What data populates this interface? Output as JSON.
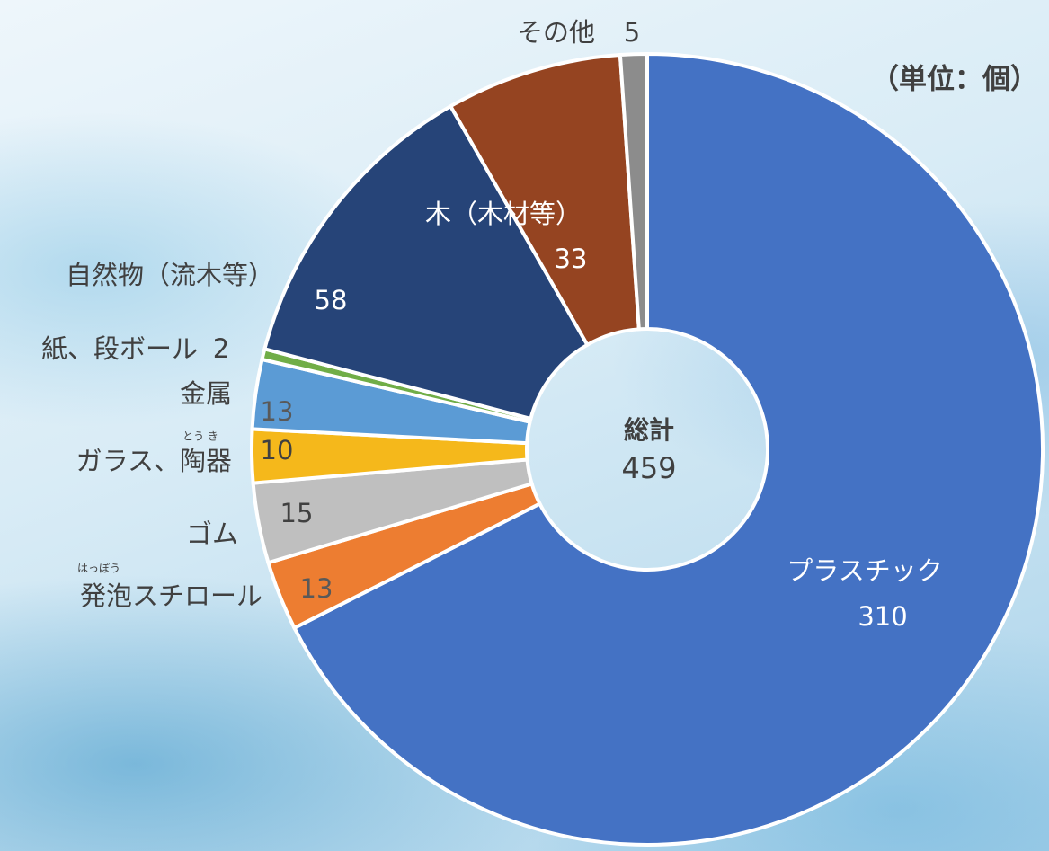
{
  "chart_data": {
    "type": "donut",
    "unit_label": "（単位：個）",
    "center_label": "総計",
    "total": 459,
    "categories": [
      "プラスチック",
      "発泡スチロール",
      "ゴム",
      "ガラス、陶器",
      "金属",
      "紙、段ボール",
      "自然物（流木等）",
      "木（木材等）",
      "その他"
    ],
    "values": [
      310,
      13,
      15,
      10,
      13,
      2,
      58,
      33,
      5
    ],
    "colors": [
      "#4472c4",
      "#ed7d31",
      "#bfbfbf",
      "#f5b81b",
      "#5b9bd5",
      "#70ad47",
      "#264478",
      "#954421",
      "#8c8c8c"
    ],
    "annotations": [
      "とう き",
      "はっぽう"
    ]
  }
}
